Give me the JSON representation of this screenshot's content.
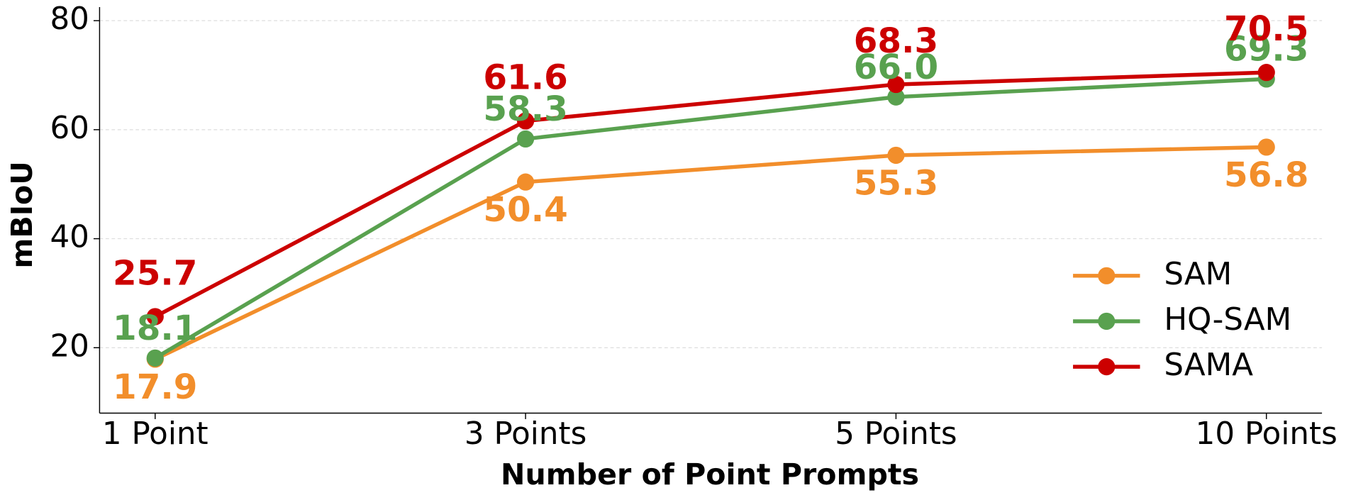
{
  "chart_data": {
    "type": "line",
    "x_label": "Number of Point Prompts",
    "y_label": "mBIoU",
    "categories": [
      "1 Point",
      "3 Points",
      "5 Points",
      "10 Points"
    ],
    "series": [
      {
        "name": "SAM",
        "color": "#f28e2b",
        "values": [
          17.9,
          50.4,
          55.3,
          56.8
        ],
        "value_labels": [
          "17.9",
          "50.4",
          "55.3",
          "56.8"
        ],
        "label_position": "below"
      },
      {
        "name": "HQ-SAM",
        "color": "#59a14f",
        "values": [
          18.1,
          58.3,
          66,
          69.3
        ],
        "value_labels": [
          "18.1",
          "58.3",
          "66.0",
          "69.3"
        ],
        "label_position": "above"
      },
      {
        "name": "SAMA",
        "color": "#cc0000",
        "values": [
          25.7,
          61.6,
          68.3,
          70.5
        ],
        "value_labels": [
          "25.7",
          "61.6",
          "68.3",
          "70.5"
        ],
        "label_position": "above"
      }
    ],
    "ylim": [
      8,
      82.5
    ],
    "yticks": [
      20,
      40,
      60,
      80
    ],
    "grid": true,
    "legend": "lower right"
  }
}
